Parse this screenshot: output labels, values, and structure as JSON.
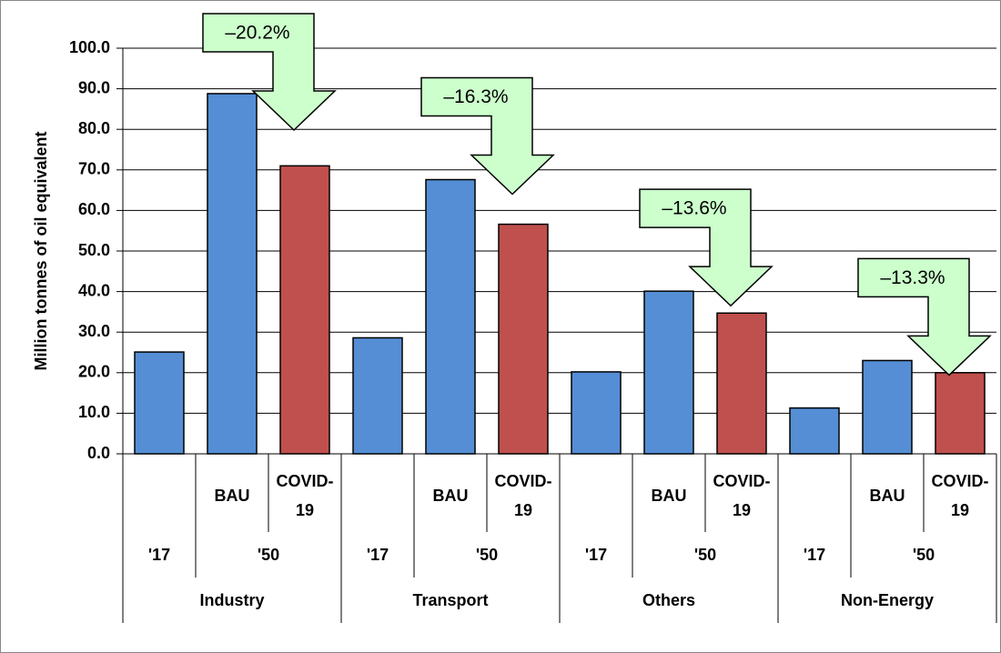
{
  "chart_data": {
    "type": "bar",
    "y_label": "Million tonnes of oil equivalent",
    "ylim": [
      0,
      100
    ],
    "yticks": [
      {
        "value": 0,
        "label": "0.0"
      },
      {
        "value": 10,
        "label": "10.0"
      },
      {
        "value": 20,
        "label": "20.0"
      },
      {
        "value": 30,
        "label": "30.0"
      },
      {
        "value": 40,
        "label": "40.0"
      },
      {
        "value": 50,
        "label": "50.0"
      },
      {
        "value": 60,
        "label": "60.0"
      },
      {
        "value": 70,
        "label": "70.0"
      },
      {
        "value": 80,
        "label": "80.0"
      },
      {
        "value": 90,
        "label": "90.0"
      },
      {
        "value": 100,
        "label": "100.0"
      }
    ],
    "grid": true,
    "groups": [
      {
        "name": "Industry",
        "annotation": "–20.2%",
        "periods": [
          {
            "name": "'17",
            "categories": [
              null
            ],
            "values": [
              25.1
            ],
            "colors": [
              "#558ed5"
            ]
          },
          {
            "name": "'50",
            "categories": [
              "BAU",
              "COVID-19"
            ],
            "values": [
              88.8,
              71.0
            ],
            "colors": [
              "#558ed5",
              "#c0504d"
            ]
          }
        ]
      },
      {
        "name": "Transport",
        "annotation": "–16.3%",
        "periods": [
          {
            "name": "'17",
            "categories": [
              null
            ],
            "values": [
              28.6
            ],
            "colors": [
              "#558ed5"
            ]
          },
          {
            "name": "'50",
            "categories": [
              "BAU",
              "COVID-19"
            ],
            "values": [
              67.6,
              56.6
            ],
            "colors": [
              "#558ed5",
              "#c0504d"
            ]
          }
        ]
      },
      {
        "name": "Others",
        "annotation": "–13.6%",
        "periods": [
          {
            "name": "'17",
            "categories": [
              null
            ],
            "values": [
              20.2
            ],
            "colors": [
              "#558ed5"
            ]
          },
          {
            "name": "'50",
            "categories": [
              "BAU",
              "COVID-19"
            ],
            "values": [
              40.1,
              34.7
            ],
            "colors": [
              "#558ed5",
              "#c0504d"
            ]
          }
        ]
      },
      {
        "name": "Non-Energy",
        "annotation": "–13.3%",
        "periods": [
          {
            "name": "'17",
            "categories": [
              null
            ],
            "values": [
              11.3
            ],
            "colors": [
              "#558ed5"
            ]
          },
          {
            "name": "'50",
            "categories": [
              "BAU",
              "COVID-19"
            ],
            "values": [
              23.0,
              20.0
            ],
            "colors": [
              "#558ed5",
              "#c0504d"
            ]
          }
        ]
      }
    ]
  }
}
